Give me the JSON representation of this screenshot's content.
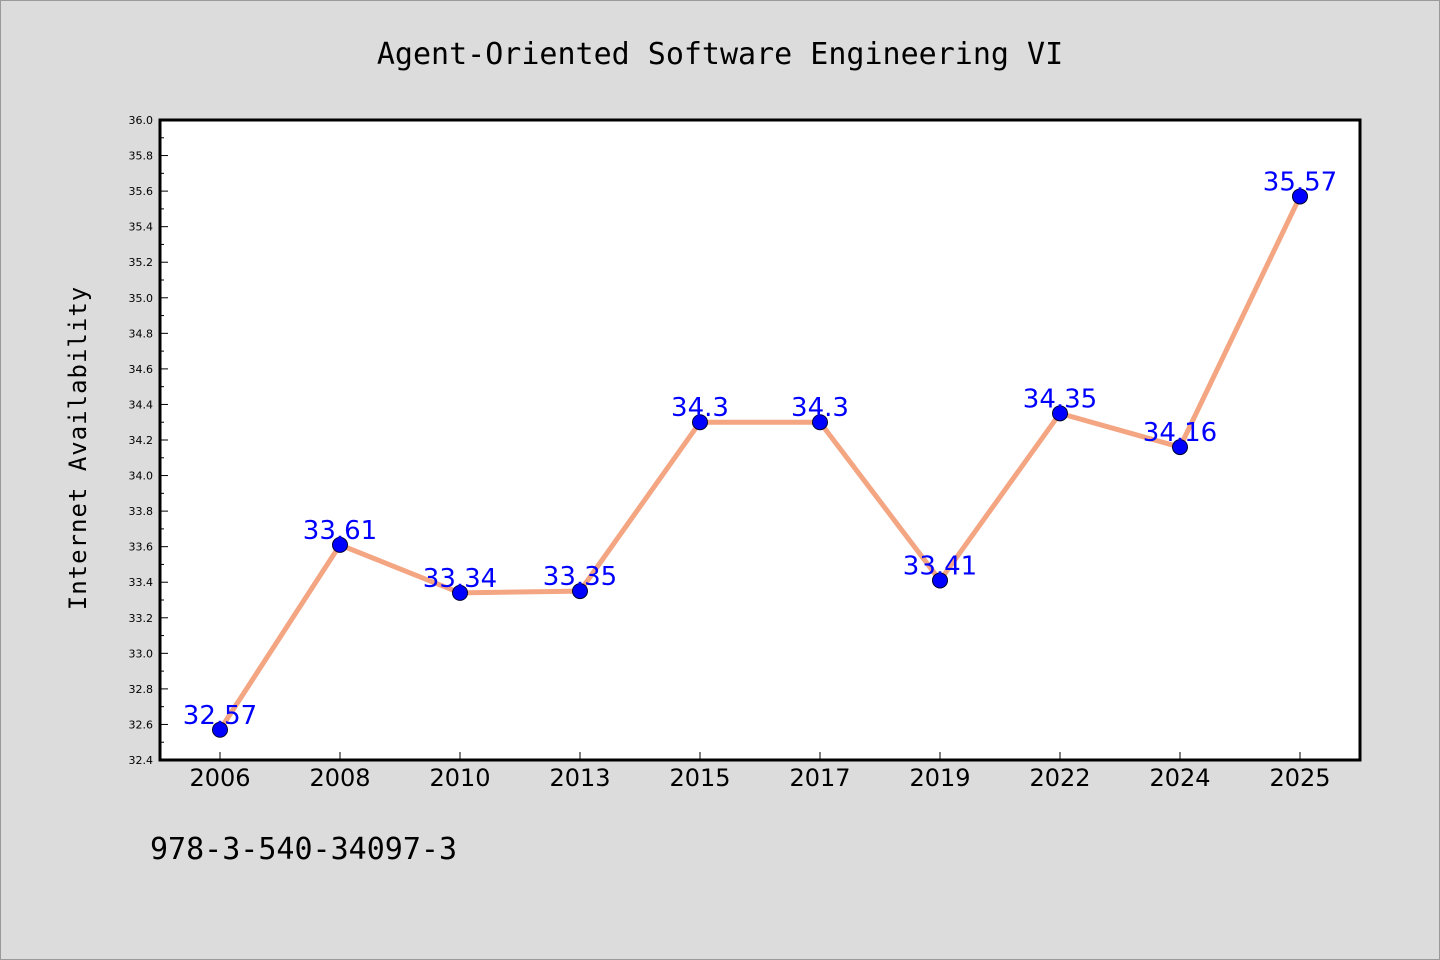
{
  "colors": {
    "background": "#dcdcdc",
    "plot_background": "#ffffff",
    "line": "#f4a582",
    "marker": "#0000ff",
    "data_label": "#0000ff",
    "axis": "#000000"
  },
  "footer_text": "978-3-540-34097-3",
  "chart_data": {
    "type": "line",
    "title": "Agent-Oriented Software Engineering VI",
    "xlabel": "",
    "ylabel": "Internet Availability",
    "categories": [
      "2006",
      "2008",
      "2010",
      "2013",
      "2015",
      "2017",
      "2019",
      "2022",
      "2024",
      "2025"
    ],
    "series": [
      {
        "values": [
          32.57,
          33.61,
          33.34,
          33.35,
          34.3,
          34.3,
          33.41,
          34.35,
          34.16,
          35.57
        ],
        "data_labels": [
          "32.57",
          "33.61",
          "33.34",
          "33.35",
          "34.3",
          "34.3",
          "33.41",
          "34.35",
          "34.16",
          "35.57"
        ]
      }
    ],
    "ylim": [
      32.4,
      36.0
    ],
    "yticks": [
      "32.4",
      "32.6",
      "32.8",
      "33.0",
      "33.2",
      "33.4",
      "33.6",
      "33.8",
      "34.0",
      "34.2",
      "34.4",
      "34.6",
      "34.8",
      "35.0",
      "35.2",
      "35.4",
      "35.6",
      "35.8",
      "36.0"
    ],
    "grid": false,
    "legend": "none",
    "marker": "circle"
  }
}
